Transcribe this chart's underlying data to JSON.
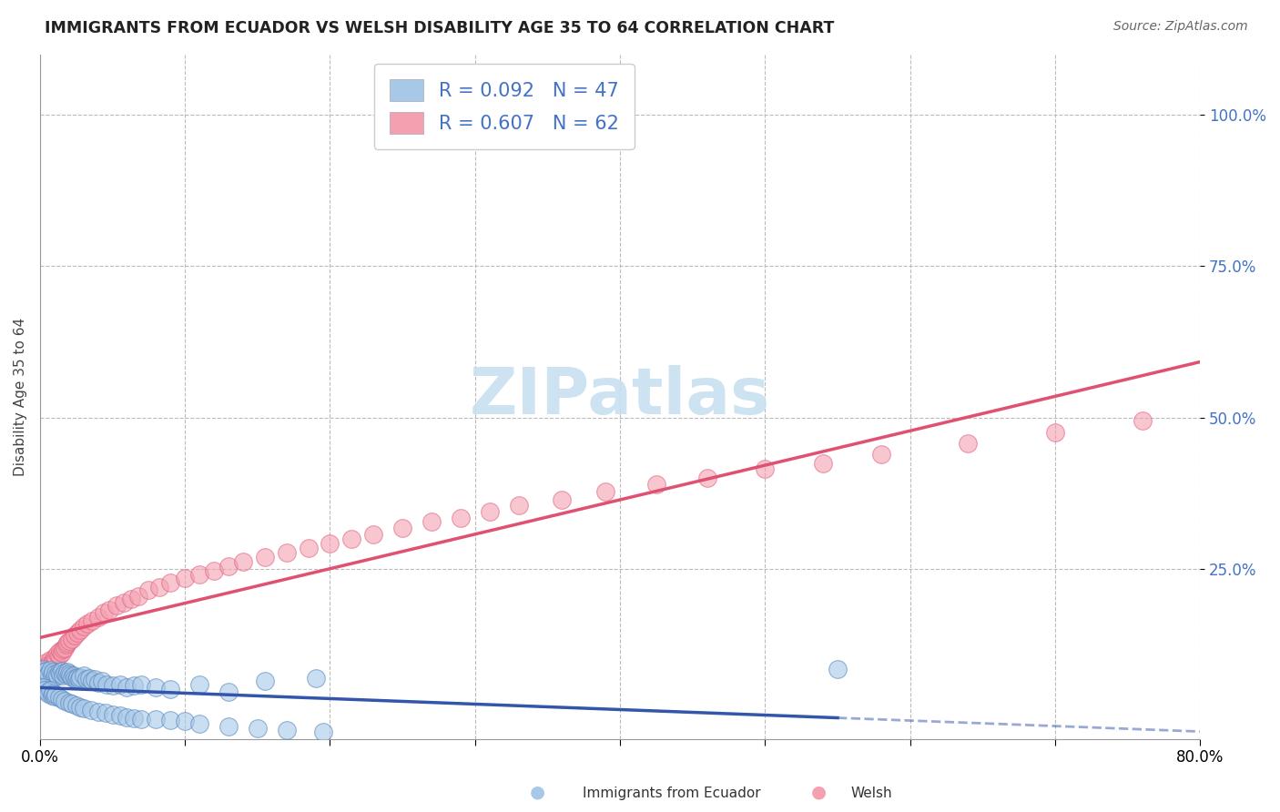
{
  "title": "IMMIGRANTS FROM ECUADOR VS WELSH DISABILITY AGE 35 TO 64 CORRELATION CHART",
  "source": "Source: ZipAtlas.com",
  "ylabel": "Disability Age 35 to 64",
  "legend_label_1": "Immigrants from Ecuador",
  "legend_label_2": "Welsh",
  "R1": 0.092,
  "N1": 47,
  "R2": 0.607,
  "N2": 62,
  "xlim": [
    0.0,
    0.8
  ],
  "ylim": [
    -0.03,
    1.1
  ],
  "xticks": [
    0.0,
    0.1,
    0.2,
    0.3,
    0.4,
    0.5,
    0.6,
    0.7,
    0.8
  ],
  "xtick_labels": [
    "0.0%",
    "",
    "",
    "",
    "",
    "",
    "",
    "",
    "80.0%"
  ],
  "ytick_positions": [
    0.25,
    0.5,
    0.75,
    1.0
  ],
  "ytick_labels": [
    "25.0%",
    "50.0%",
    "75.0%",
    "100.0%"
  ],
  "color_ecuador": "#A8C8E8",
  "color_welsh": "#F4A0B0",
  "color_ecuador_edge": "#5585BB",
  "color_welsh_edge": "#E06080",
  "color_line_ecuador": "#3355AA",
  "color_line_welsh": "#E05070",
  "watermark_color": "#C8E0F0",
  "background_color": "#FFFFFF",
  "grid_color": "#BBBBBB",
  "ecuador_x": [
    0.002,
    0.003,
    0.004,
    0.005,
    0.006,
    0.007,
    0.008,
    0.009,
    0.01,
    0.011,
    0.012,
    0.013,
    0.014,
    0.015,
    0.016,
    0.017,
    0.018,
    0.019,
    0.02,
    0.021,
    0.022,
    0.023,
    0.024,
    0.025,
    0.026,
    0.027,
    0.028,
    0.03,
    0.032,
    0.034,
    0.036,
    0.038,
    0.04,
    0.043,
    0.046,
    0.05,
    0.055,
    0.06,
    0.065,
    0.07,
    0.08,
    0.09,
    0.11,
    0.13,
    0.155,
    0.19,
    0.55
  ],
  "ecuador_y": [
    0.085,
    0.08,
    0.082,
    0.075,
    0.078,
    0.083,
    0.076,
    0.08,
    0.072,
    0.078,
    0.075,
    0.08,
    0.077,
    0.082,
    0.074,
    0.079,
    0.076,
    0.08,
    0.078,
    0.074,
    0.072,
    0.075,
    0.07,
    0.068,
    0.072,
    0.069,
    0.071,
    0.075,
    0.068,
    0.07,
    0.065,
    0.068,
    0.062,
    0.065,
    0.06,
    0.058,
    0.06,
    0.055,
    0.058,
    0.06,
    0.055,
    0.052,
    0.06,
    0.048,
    0.065,
    0.07,
    0.085
  ],
  "ecuador_x_below": [
    0.002,
    0.003,
    0.005,
    0.006,
    0.007,
    0.008,
    0.009,
    0.01,
    0.011,
    0.013,
    0.015,
    0.017,
    0.02,
    0.022,
    0.025,
    0.028,
    0.03,
    0.035,
    0.04,
    0.045,
    0.05,
    0.055,
    0.06,
    0.065,
    0.07,
    0.08,
    0.09,
    0.1,
    0.11,
    0.13,
    0.15,
    0.17,
    0.195
  ],
  "ecuador_y_below": [
    0.055,
    0.05,
    0.048,
    0.045,
    0.05,
    0.042,
    0.045,
    0.04,
    0.043,
    0.038,
    0.035,
    0.032,
    0.03,
    0.028,
    0.025,
    0.022,
    0.02,
    0.018,
    0.015,
    0.013,
    0.01,
    0.008,
    0.006,
    0.004,
    0.003,
    0.002,
    0.001,
    0.0,
    -0.005,
    -0.01,
    -0.012,
    -0.015,
    -0.018
  ],
  "welsh_x": [
    0.002,
    0.003,
    0.004,
    0.005,
    0.006,
    0.007,
    0.008,
    0.009,
    0.01,
    0.011,
    0.012,
    0.013,
    0.014,
    0.015,
    0.016,
    0.017,
    0.018,
    0.019,
    0.02,
    0.022,
    0.024,
    0.026,
    0.028,
    0.03,
    0.033,
    0.036,
    0.04,
    0.044,
    0.048,
    0.053,
    0.058,
    0.063,
    0.068,
    0.075,
    0.082,
    0.09,
    0.1,
    0.11,
    0.12,
    0.13,
    0.14,
    0.155,
    0.17,
    0.185,
    0.2,
    0.215,
    0.23,
    0.25,
    0.27,
    0.29,
    0.31,
    0.33,
    0.36,
    0.39,
    0.425,
    0.46,
    0.5,
    0.54,
    0.58,
    0.64,
    0.7,
    0.76
  ],
  "welsh_y": [
    0.085,
    0.09,
    0.095,
    0.088,
    0.092,
    0.1,
    0.095,
    0.098,
    0.105,
    0.1,
    0.11,
    0.108,
    0.115,
    0.112,
    0.118,
    0.12,
    0.125,
    0.128,
    0.132,
    0.135,
    0.14,
    0.145,
    0.15,
    0.155,
    0.16,
    0.165,
    0.17,
    0.178,
    0.182,
    0.19,
    0.195,
    0.2,
    0.205,
    0.215,
    0.22,
    0.228,
    0.235,
    0.242,
    0.248,
    0.255,
    0.262,
    0.27,
    0.278,
    0.285,
    0.292,
    0.3,
    0.308,
    0.318,
    0.328,
    0.335,
    0.345,
    0.355,
    0.365,
    0.378,
    0.39,
    0.4,
    0.415,
    0.425,
    0.44,
    0.458,
    0.475,
    0.495
  ]
}
